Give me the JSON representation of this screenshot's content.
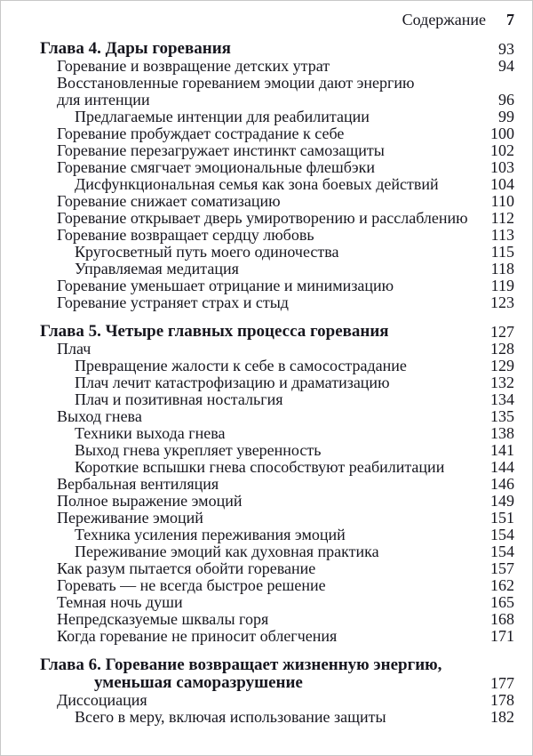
{
  "header": {
    "title": "Содержание",
    "page_number": "7"
  },
  "toc": {
    "chapters": [
      {
        "title_lines": [
          "Глава 4. Дары горевания"
        ],
        "page": "93",
        "entries": [
          {
            "level": 1,
            "lines": [
              "Горевание и возвращение детских утрат"
            ],
            "page": "94"
          },
          {
            "level": 1,
            "lines": [
              "Восстановленные гореванием эмоции дают энергию",
              "для интенции"
            ],
            "page": "96"
          },
          {
            "level": 2,
            "lines": [
              "Предлагаемые интенции для реабилитации"
            ],
            "page": "99"
          },
          {
            "level": 1,
            "lines": [
              "Горевание пробуждает сострадание к себе"
            ],
            "page": "100"
          },
          {
            "level": 1,
            "lines": [
              "Горевание перезагружает инстинкт самозащиты"
            ],
            "page": "102"
          },
          {
            "level": 1,
            "lines": [
              "Горевание смягчает эмоциональные флешбэки"
            ],
            "page": "103"
          },
          {
            "level": 2,
            "lines": [
              "Дисфункциональная семья как зона боевых действий"
            ],
            "page": "104"
          },
          {
            "level": 1,
            "lines": [
              "Горевание снижает соматизацию"
            ],
            "page": "110"
          },
          {
            "level": 1,
            "lines": [
              "Горевание открывает дверь умиротворению и расслаблению"
            ],
            "page": "112"
          },
          {
            "level": 1,
            "lines": [
              "Горевание возвращает сердцу любовь"
            ],
            "page": "113"
          },
          {
            "level": 2,
            "lines": [
              "Кругосветный путь моего одиночества"
            ],
            "page": "115"
          },
          {
            "level": 2,
            "lines": [
              "Управляемая медитация"
            ],
            "page": "118"
          },
          {
            "level": 1,
            "lines": [
              "Горевание уменьшает отрицание и минимизацию"
            ],
            "page": "119"
          },
          {
            "level": 1,
            "lines": [
              "Горевание устраняет страх и стыд"
            ],
            "page": "123"
          }
        ]
      },
      {
        "title_lines": [
          "Глава 5. Четыре главных процесса горевания"
        ],
        "page": "127",
        "entries": [
          {
            "level": 1,
            "lines": [
              "Плач"
            ],
            "page": "128"
          },
          {
            "level": 2,
            "lines": [
              "Превращение жалости к себе в самосострадание"
            ],
            "page": "129"
          },
          {
            "level": 2,
            "lines": [
              "Плач лечит катастрофизацию и драматизацию"
            ],
            "page": "132"
          },
          {
            "level": 2,
            "lines": [
              "Плач и позитивная ностальгия"
            ],
            "page": "134"
          },
          {
            "level": 1,
            "lines": [
              "Выход гнева"
            ],
            "page": "135"
          },
          {
            "level": 2,
            "lines": [
              "Техники выхода гнева"
            ],
            "page": "138"
          },
          {
            "level": 2,
            "lines": [
              "Выход гнева укрепляет уверенность"
            ],
            "page": "141"
          },
          {
            "level": 2,
            "lines": [
              "Короткие вспышки гнева способствуют реабилитации"
            ],
            "page": "144"
          },
          {
            "level": 1,
            "lines": [
              "Вербальная вентиляция"
            ],
            "page": "146"
          },
          {
            "level": 1,
            "lines": [
              "Полное выражение эмоций"
            ],
            "page": "149"
          },
          {
            "level": 1,
            "lines": [
              "Переживание эмоций"
            ],
            "page": "151"
          },
          {
            "level": 2,
            "lines": [
              "Техника усиления переживания эмоций"
            ],
            "page": "154"
          },
          {
            "level": 2,
            "lines": [
              "Переживание эмоций как духовная практика"
            ],
            "page": "154"
          },
          {
            "level": 1,
            "lines": [
              "Как разум пытается обойти горевание"
            ],
            "page": "157"
          },
          {
            "level": 1,
            "lines": [
              "Горевать — не всегда быстрое решение"
            ],
            "page": "162"
          },
          {
            "level": 1,
            "lines": [
              "Темная ночь души"
            ],
            "page": "165"
          },
          {
            "level": 1,
            "lines": [
              "Непредсказуемые шквалы горя"
            ],
            "page": "168"
          },
          {
            "level": 1,
            "lines": [
              "Когда горевание не приносит облегчения"
            ],
            "page": "171"
          }
        ]
      },
      {
        "title_lines": [
          "Глава 6. Горевание возвращает жизненную энергию,",
          "уменьшая саморазрушение"
        ],
        "page": "177",
        "entries": [
          {
            "level": 1,
            "lines": [
              "Диссоциация"
            ],
            "page": "178"
          },
          {
            "level": 2,
            "lines": [
              "Всего в меру, включая использование защиты"
            ],
            "page": "182"
          }
        ]
      }
    ]
  },
  "colors": {
    "text": "#16161e",
    "background": "#ffffff",
    "page_border": "#c8c8c8"
  }
}
